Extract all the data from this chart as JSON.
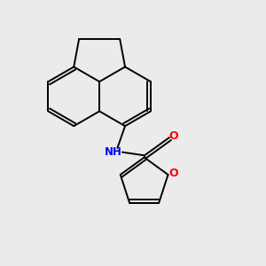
{
  "background_color": "#ebebeb",
  "bond_color": "#000000",
  "atom_colors": {
    "N": "#0000ff",
    "O": "#ff0000",
    "H": "#808080"
  },
  "figsize": [
    3.0,
    3.0
  ],
  "dpi": 100
}
